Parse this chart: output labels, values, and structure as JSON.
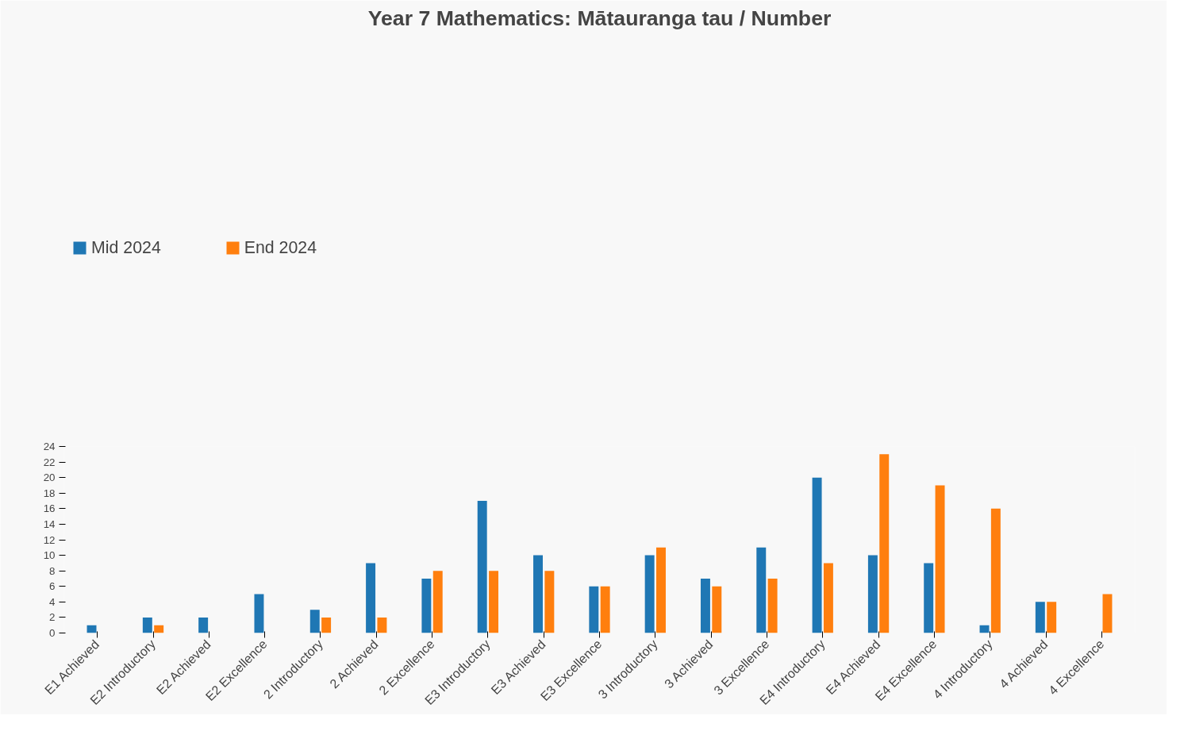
{
  "chart_data": {
    "type": "bar",
    "title": "Year 7 Mathematics: Mātauranga tau / Number",
    "categories": [
      "E1 Achieved",
      "E2 Introductory",
      "E2 Achieved",
      "E2 Excellence",
      "2 Introductory",
      "2 Achieved",
      "2 Excellence",
      "E3 Introductory",
      "E3 Achieved",
      "E3 Excellence",
      "3 Introductory",
      "3 Achieved",
      "3 Excellence",
      "E4 Introductory",
      "E4 Achieved",
      "E4 Excellence",
      "4 Introductory",
      "4 Achieved",
      "4 Excellence"
    ],
    "series": [
      {
        "name": "Mid 2024",
        "color": "#1f77b4",
        "values": [
          1,
          2,
          2,
          5,
          3,
          9,
          7,
          17,
          10,
          6,
          10,
          7,
          11,
          20,
          10,
          9,
          1,
          4,
          null
        ]
      },
      {
        "name": "End 2024",
        "color": "#ff7f0e",
        "values": [
          null,
          1,
          null,
          null,
          2,
          2,
          8,
          8,
          8,
          6,
          11,
          6,
          7,
          9,
          23,
          19,
          16,
          4,
          5
        ]
      }
    ],
    "ylim": [
      0,
      24
    ],
    "yticks": [
      0,
      2,
      4,
      6,
      8,
      10,
      12,
      14,
      16,
      18,
      20,
      22,
      24
    ],
    "grid": false,
    "legend": "top left"
  }
}
